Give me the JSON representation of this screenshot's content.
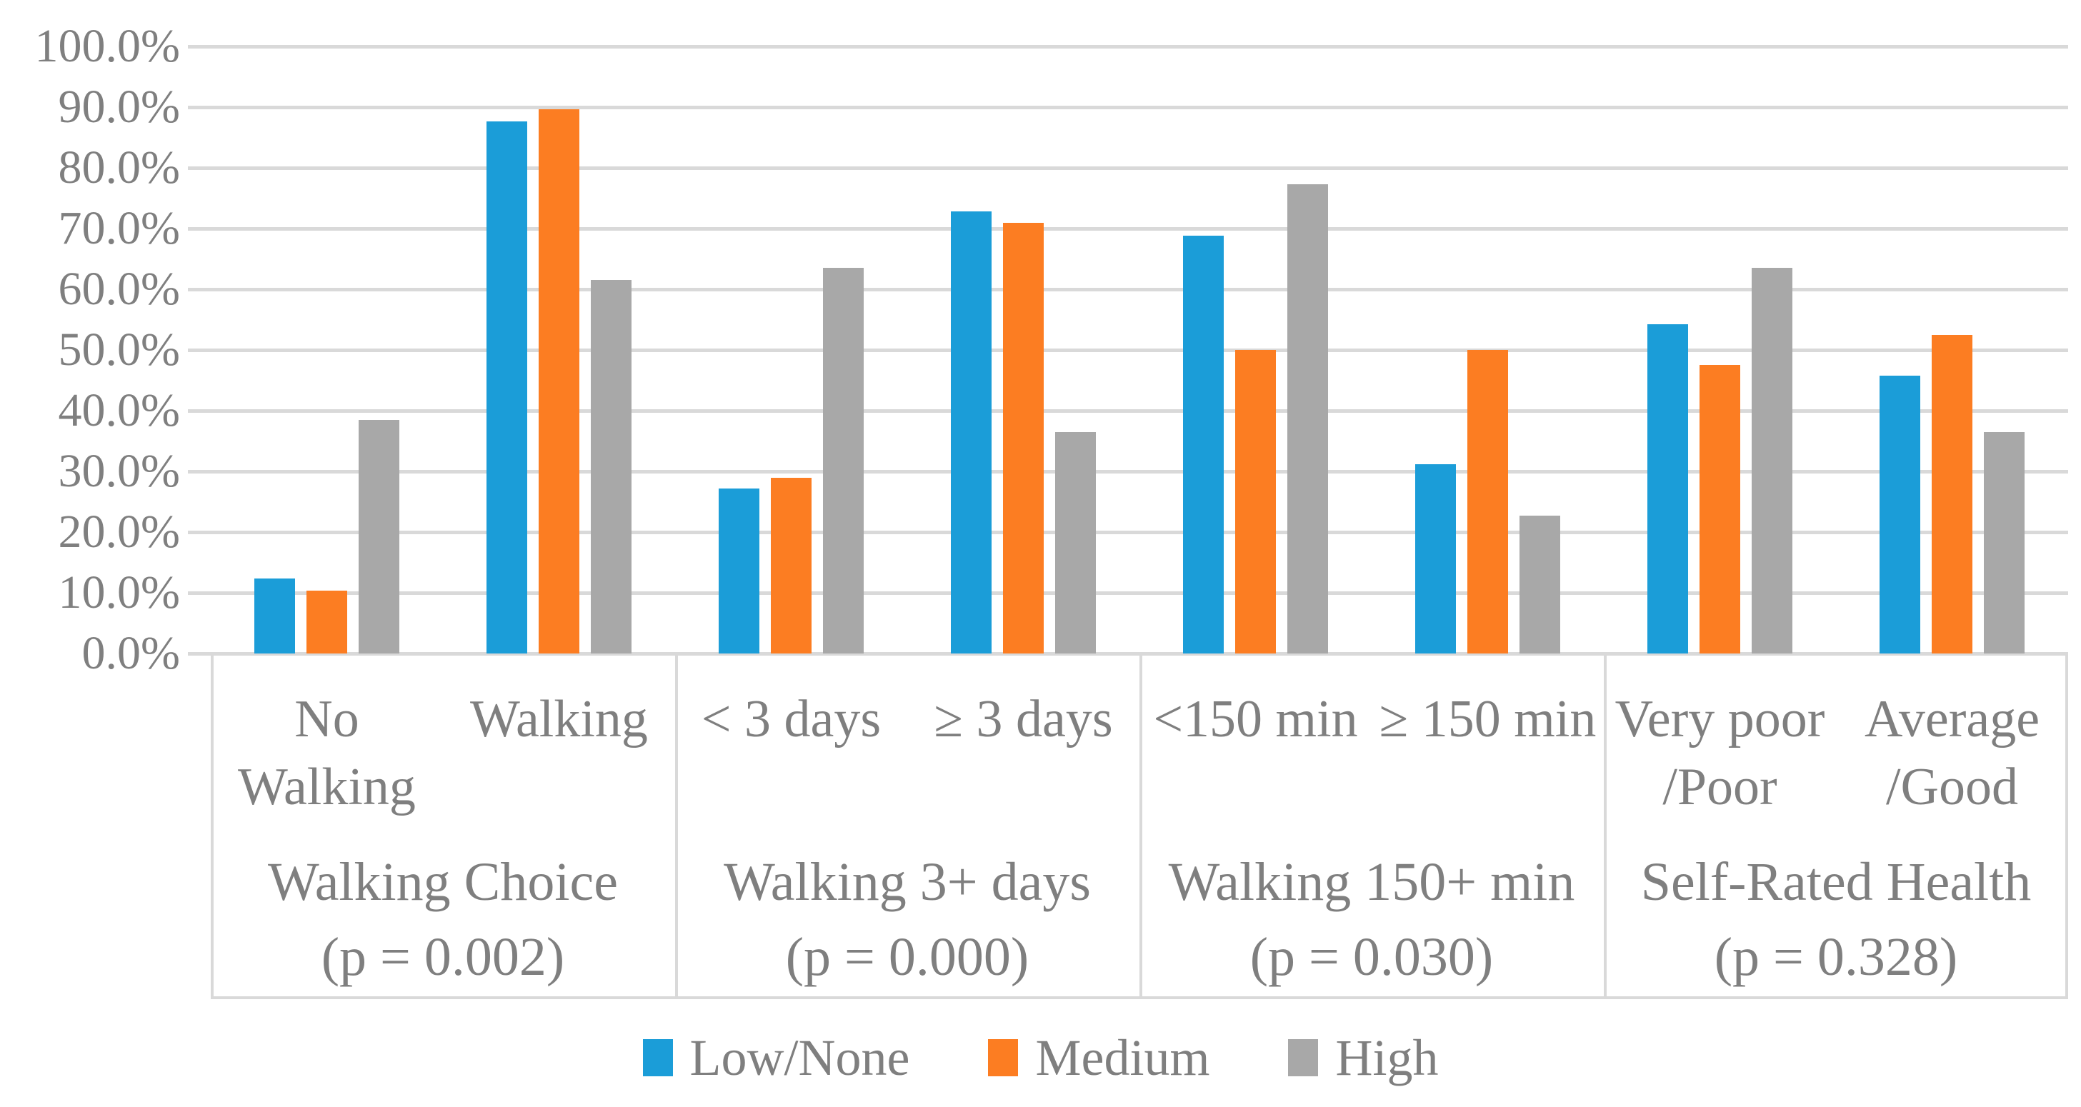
{
  "chart_data": {
    "type": "bar",
    "title": "",
    "xlabel": "",
    "ylabel": "",
    "grid": true,
    "legend_position": "bottom",
    "y_axis": {
      "min": 0,
      "max": 100,
      "step": 10,
      "unit": "%",
      "tick_labels": [
        "100.0%",
        "90.0%",
        "80.0%",
        "70.0%",
        "60.0%",
        "50.0%",
        "40.0%",
        "30.0%",
        "20.0%",
        "10.0%",
        "0.0%"
      ]
    },
    "series": [
      {
        "name": "Low/None",
        "color": "#1b9dd8"
      },
      {
        "name": "Medium",
        "color": "#fc7d22"
      },
      {
        "name": "High",
        "color": "#a8a8a8"
      }
    ],
    "groups": [
      {
        "title": [
          "Walking Choice",
          "(p = 0.002)"
        ],
        "categories": [
          {
            "label": [
              "No",
              "Walking"
            ],
            "values": [
              12.4,
              10.4,
              38.5
            ]
          },
          {
            "label": [
              "Walking"
            ],
            "values": [
              87.6,
              89.6,
              61.5
            ]
          }
        ]
      },
      {
        "title": [
          "Walking 3+ days",
          "(p = 0.000)"
        ],
        "categories": [
          {
            "label": [
              "< 3 days"
            ],
            "values": [
              27.2,
              29.0,
              63.5
            ]
          },
          {
            "label": [
              "≥ 3 days"
            ],
            "values": [
              72.8,
              71.0,
              36.5
            ]
          }
        ]
      },
      {
        "title": [
          "Walking 150+ min",
          "(p = 0.030)"
        ],
        "categories": [
          {
            "label": [
              "<150 min"
            ],
            "values": [
              68.8,
              50.0,
              77.3
            ]
          },
          {
            "label": [
              "≥ 150 min"
            ],
            "values": [
              31.2,
              50.0,
              22.7
            ]
          }
        ]
      },
      {
        "title": [
          "Self-Rated Health",
          "(p = 0.328)"
        ],
        "categories": [
          {
            "label": [
              "Very poor",
              "/Poor"
            ],
            "values": [
              54.2,
              47.5,
              63.5
            ]
          },
          {
            "label": [
              "Average",
              "/Good"
            ],
            "values": [
              45.8,
              52.5,
              36.5
            ]
          }
        ]
      }
    ],
    "colors": {
      "gridline": "#d9d9d9",
      "band_border": "#d9d9d9",
      "axis_text": "#7f7f7f"
    }
  }
}
